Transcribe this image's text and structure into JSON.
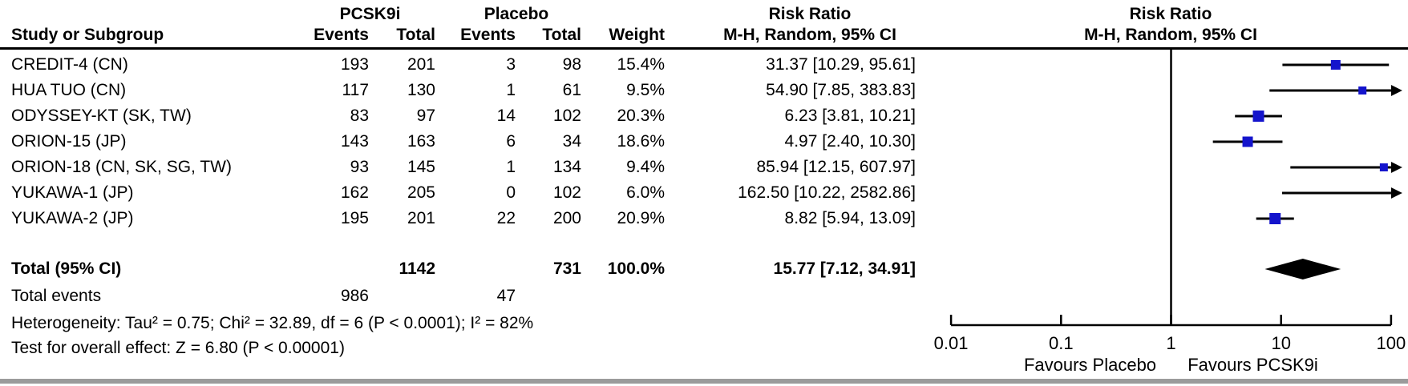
{
  "table": {
    "group1_header": "PCSK9i",
    "group2_header": "Placebo",
    "effect_header_title": "Risk Ratio",
    "effect_header_sub": "M-H, Random, 95% CI",
    "plot_header_title": "Risk Ratio",
    "plot_header_sub": "M-H, Random, 95% CI",
    "col_study": "Study or Subgroup",
    "col_events": "Events",
    "col_total": "Total",
    "col_weight": "Weight"
  },
  "footer": {
    "total_label": "Total (95% CI)",
    "total_events_label": "Total events",
    "heterogeneity": "Heterogeneity: Tau² = 0.75; Chi² = 32.89, df = 6 (P < 0.0001); I² = 82%",
    "overall_effect": "Test for overall effect: Z = 6.80 (P < 0.00001)"
  },
  "chart_data": {
    "type": "forest",
    "x_scale": "log10",
    "axis_ticks": [
      0.01,
      0.1,
      1,
      10,
      100
    ],
    "axis_tick_labels": [
      "0.01",
      "0.1",
      "1",
      "10",
      "100"
    ],
    "axis_range": [
      0.01,
      100
    ],
    "favours_left": "Favours Placebo",
    "favours_right": "Favours PCSK9i",
    "marker_color": "#1414cc",
    "line_color": "#000000",
    "studies": [
      {
        "label": "CREDIT-4 (CN)",
        "events1": "193",
        "total1": "201",
        "events2": "3",
        "total2": "98",
        "weight": "15.4%",
        "weight_pct": 15.4,
        "rr": 31.37,
        "ci_low": 10.29,
        "ci_high": 95.61,
        "ci_text": "31.37 [10.29, 95.61]"
      },
      {
        "label": "HUA TUO (CN)",
        "events1": "117",
        "total1": "130",
        "events2": "1",
        "total2": "61",
        "weight": "9.5%",
        "weight_pct": 9.5,
        "rr": 54.9,
        "ci_low": 7.85,
        "ci_high": 383.83,
        "ci_text": "54.90 [7.85, 383.83]"
      },
      {
        "label": "ODYSSEY-KT (SK, TW)",
        "events1": "83",
        "total1": "97",
        "events2": "14",
        "total2": "102",
        "weight": "20.3%",
        "weight_pct": 20.3,
        "rr": 6.23,
        "ci_low": 3.81,
        "ci_high": 10.21,
        "ci_text": "6.23 [3.81, 10.21]"
      },
      {
        "label": "ORION-15 (JP)",
        "events1": "143",
        "total1": "163",
        "events2": "6",
        "total2": "34",
        "weight": "18.6%",
        "weight_pct": 18.6,
        "rr": 4.97,
        "ci_low": 2.4,
        "ci_high": 10.3,
        "ci_text": "4.97 [2.40, 10.30]"
      },
      {
        "label": "ORION-18 (CN, SK, SG, TW)",
        "events1": "93",
        "total1": "145",
        "events2": "1",
        "total2": "134",
        "weight": "9.4%",
        "weight_pct": 9.4,
        "rr": 85.94,
        "ci_low": 12.15,
        "ci_high": 607.97,
        "ci_text": "85.94 [12.15, 607.97]"
      },
      {
        "label": "YUKAWA-1 (JP)",
        "events1": "162",
        "total1": "205",
        "events2": "0",
        "total2": "102",
        "weight": "6.0%",
        "weight_pct": 6.0,
        "rr": 162.5,
        "ci_low": 10.22,
        "ci_high": 2582.86,
        "ci_text": "162.50 [10.22, 2582.86]"
      },
      {
        "label": "YUKAWA-2 (JP)",
        "events1": "195",
        "total1": "201",
        "events2": "22",
        "total2": "200",
        "weight": "20.9%",
        "weight_pct": 20.9,
        "rr": 8.82,
        "ci_low": 5.94,
        "ci_high": 13.09,
        "ci_text": "8.82 [5.94, 13.09]"
      }
    ],
    "total": {
      "total1": "1142",
      "total2": "731",
      "weight": "100.0%",
      "rr": 15.77,
      "ci_low": 7.12,
      "ci_high": 34.91,
      "ci_text": "15.77 [7.12, 34.91]",
      "events1": "986",
      "events2": "47"
    }
  }
}
